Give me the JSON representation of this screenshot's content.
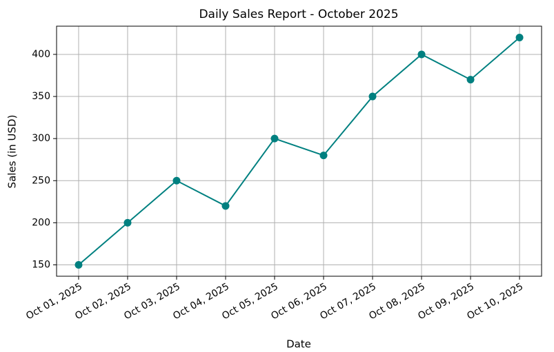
{
  "chart_data": {
    "type": "line",
    "title": "Daily Sales Report - October 2025",
    "x_label": "Date",
    "y_label": "Sales (in USD)",
    "categories": [
      "Oct 01, 2025",
      "Oct 02, 2025",
      "Oct 03, 2025",
      "Oct 04, 2025",
      "Oct 05, 2025",
      "Oct 06, 2025",
      "Oct 07, 2025",
      "Oct 08, 2025",
      "Oct 09, 2025",
      "Oct 10, 2025"
    ],
    "values": [
      150,
      200,
      250,
      220,
      300,
      280,
      350,
      400,
      370,
      420
    ],
    "color": "#008080",
    "marker": "circle",
    "ylim": [
      136.5,
      433.5
    ],
    "yticks": [
      150,
      200,
      250,
      300,
      350,
      400
    ],
    "grid": true
  }
}
